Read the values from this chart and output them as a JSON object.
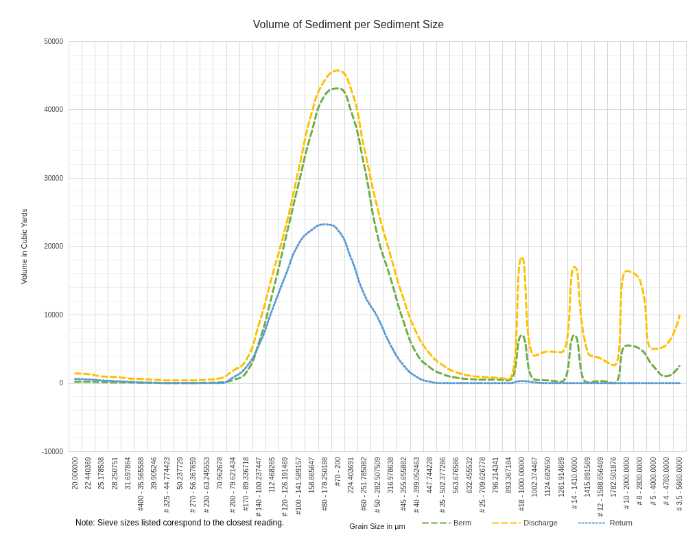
{
  "chart_data": {
    "type": "line",
    "title": "Volume of Sediment per Sediment Size",
    "xlabel": "Grain Size in µm",
    "ylabel": "Volume in Cubic Yards",
    "annotations": [
      "Note: Sieve sizes listed corespond to the closest reading."
    ],
    "categories": [
      "20.000000",
      "22.440369",
      "25.178508",
      "28.250751",
      "31.697864",
      "#400 - 35.565588",
      "39.905246",
      "# 325 - 44.774423",
      "50.237729",
      "# 270 - 56.367659",
      "# 230 - 63.245553",
      "70.962678",
      "# 200 - 79.621434",
      "#170 - 89.336718",
      "# 140 - 100.237447",
      "112.468265",
      "# 120 - 126.191469",
      "#100 - 141.589157",
      "158.865647",
      "#80 - 178.250188",
      "#70 - 200",
      "224.403691",
      "#60 - 251.785082",
      "# 50 - 282.507509",
      "316.978638",
      "#45 - 355.655882",
      "# 40 - 399.052463",
      "447.744228",
      "# 35 - 502.377286",
      "563.676586",
      "632.455532",
      "# 25 - 709.626778",
      "796.214341",
      "893.367184",
      "#18 - 1000.00000",
      "1002.374467",
      "1124.682650",
      "1261.914689",
      "# 14 - 1410.0000",
      "1415.891569",
      "# 12 - 1588.656469",
      "1782.501876",
      "# 10 - 2000.0000",
      "# 8 - 2830.0000",
      "# 5 - 4000.0000",
      "# 4 - 4760.0000",
      "# 3.5 - 5660.0000"
    ],
    "series": [
      {
        "name": "Berm",
        "color": "#70ad47",
        "line_style": "dashed",
        "values": [
          200,
          200,
          150,
          100,
          100,
          50,
          50,
          0,
          0,
          0,
          50,
          100,
          450,
          1500,
          6000,
          13000,
          21000,
          29100,
          36700,
          42100,
          43100,
          39800,
          31800,
          21700,
          15400,
          9000,
          4300,
          2300,
          1300,
          800,
          600,
          500,
          500,
          400,
          7000,
          500,
          400,
          200,
          7000,
          100,
          300,
          0,
          5500,
          5000,
          2500,
          1000,
          2500
        ]
      },
      {
        "name": "Discharge",
        "color": "#ffc000",
        "line_style": "dashed",
        "values": [
          1400,
          1300,
          1000,
          900,
          700,
          600,
          500,
          400,
          400,
          400,
          500,
          700,
          1800,
          3300,
          8700,
          15700,
          22700,
          31100,
          39500,
          44300,
          45700,
          43000,
          34400,
          25700,
          18700,
          12300,
          7300,
          4300,
          2600,
          1600,
          1100,
          900,
          800,
          600,
          18400,
          4000,
          4600,
          4500,
          17000,
          4600,
          3600,
          2600,
          16400,
          15000,
          5000,
          5600,
          9900
        ]
      },
      {
        "name": "Return",
        "color": "#5b9bd5",
        "line_style": "dotted",
        "values": [
          600,
          550,
          400,
          300,
          200,
          100,
          50,
          0,
          0,
          0,
          0,
          0,
          800,
          2300,
          5600,
          10700,
          15700,
          20300,
          22400,
          23200,
          22400,
          18300,
          13000,
          9700,
          5600,
          2600,
          900,
          200,
          0,
          0,
          0,
          0,
          0,
          0,
          300,
          100,
          0,
          0,
          0,
          0,
          0,
          0,
          0,
          0,
          0,
          0,
          0
        ]
      }
    ],
    "ylim": [
      -10000,
      50000
    ],
    "yticks": [
      -10000,
      0,
      10000,
      20000,
      30000,
      40000,
      50000
    ],
    "grid": true,
    "legend": "bottom",
    "marker": "none"
  }
}
